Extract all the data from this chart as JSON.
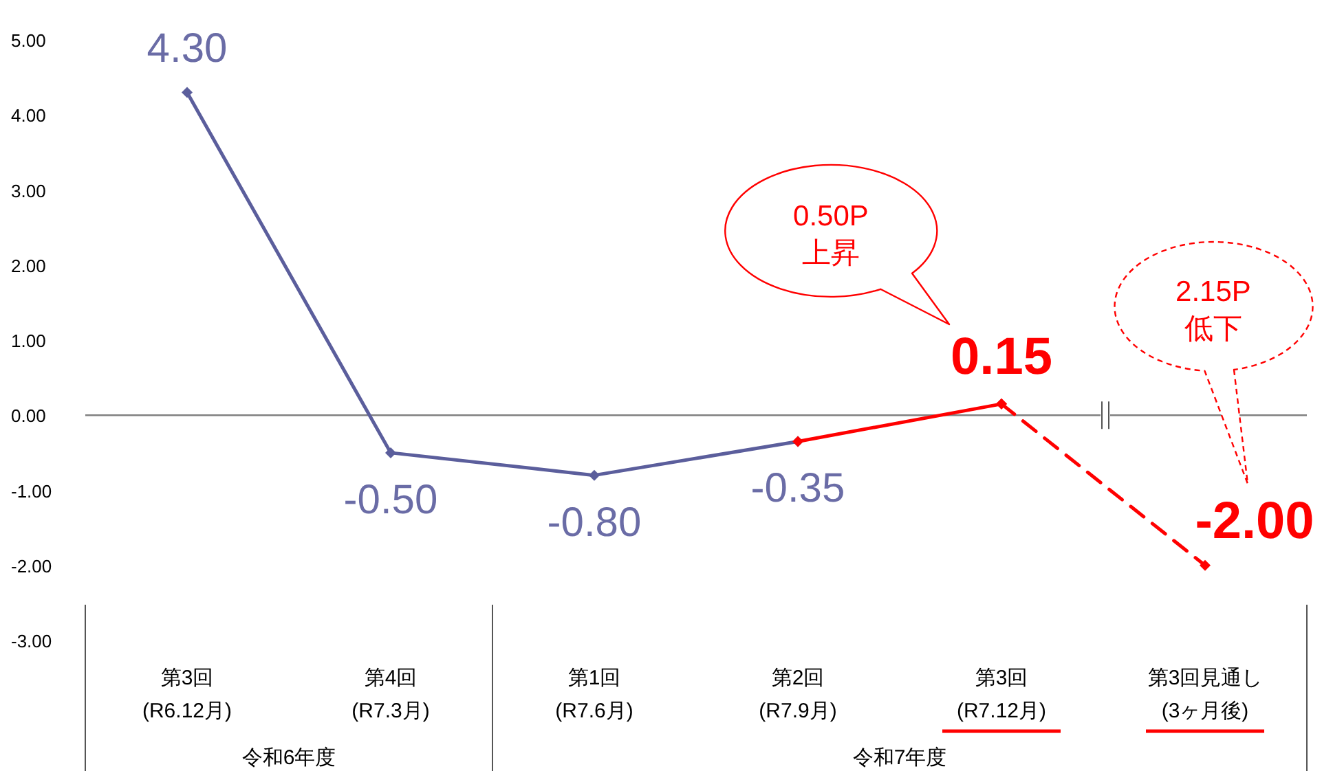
{
  "chart_data": {
    "type": "line",
    "categories": [
      "第3回\n(R6.12月)",
      "第4回\n(R7.3月)",
      "第1回\n(R7.6月)",
      "第2回\n(R7.9月)",
      "第3回\n(R7.12月)",
      "第3回見通し\n(3ヶ月後)"
    ],
    "series": [
      {
        "color": "#5b5e9c",
        "line_style": "solid",
        "values": [
          4.3,
          -0.5,
          -0.8,
          -0.35,
          null,
          null
        ],
        "value_labels": [
          "4.30",
          "-0.50",
          "-0.80",
          "-0.35",
          null,
          null
        ]
      },
      {
        "color": "#ff0000",
        "line_style": "solid",
        "values": [
          null,
          null,
          null,
          -0.35,
          0.15,
          null
        ],
        "value_labels": [
          null,
          null,
          null,
          null,
          "0.15",
          null
        ]
      },
      {
        "color": "#ff0000",
        "line_style": "dashed",
        "values": [
          null,
          null,
          null,
          null,
          0.15,
          -2.0
        ],
        "value_labels": [
          null,
          null,
          null,
          null,
          null,
          "-2.00"
        ]
      }
    ],
    "ylim": [
      -3,
      5
    ],
    "yticks": [
      {
        "value": 5,
        "label": "5.00"
      },
      {
        "value": 4,
        "label": "4.00"
      },
      {
        "value": 3,
        "label": "3.00"
      },
      {
        "value": 2,
        "label": "2.00"
      },
      {
        "value": 1,
        "label": "1.00"
      },
      {
        "value": 0,
        "label": "0.00"
      },
      {
        "value": -1,
        "label": "-1.00"
      },
      {
        "value": -2,
        "label": "-2.00"
      },
      {
        "value": -3,
        "label": "-3.00"
      }
    ],
    "ref_lines": [
      {
        "axis": "y",
        "value": 0,
        "color": "#808080"
      }
    ],
    "grid": false,
    "marker": "diamond",
    "annotations": [
      "0.50P\n上昇",
      "2.15P\n低下",
      "令和6年度",
      "令和7年度"
    ]
  }
}
